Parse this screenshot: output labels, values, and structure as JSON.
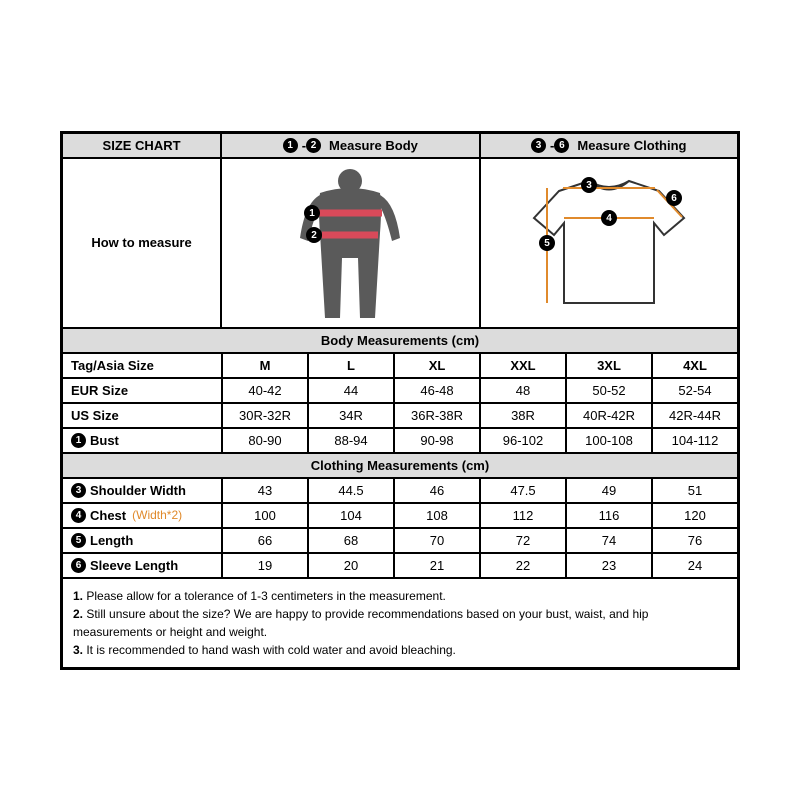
{
  "header": {
    "size_chart": "SIZE CHART",
    "measure_body_badges": [
      "1",
      "2"
    ],
    "measure_body": "Measure Body",
    "measure_clothing_badges": [
      "3",
      "6"
    ],
    "measure_clothing": "Measure Clothing",
    "how_to_measure": "How to measure"
  },
  "sections": {
    "body": "Body Measurements (cm)",
    "clothing": "Clothing Measurements  (cm)"
  },
  "sizes": [
    "M",
    "L",
    "XL",
    "XXL",
    "3XL",
    "4XL"
  ],
  "body_rows": [
    {
      "label": "Tag/Asia Size",
      "bold": true,
      "badge": null,
      "vals": [
        "M",
        "L",
        "XL",
        "XXL",
        "3XL",
        "4XL"
      ]
    },
    {
      "label": "EUR Size",
      "bold": true,
      "badge": null,
      "vals": [
        "40-42",
        "44",
        "46-48",
        "48",
        "50-52",
        "52-54"
      ]
    },
    {
      "label": "US Size",
      "bold": true,
      "badge": null,
      "vals": [
        "30R-32R",
        "34R",
        "36R-38R",
        "38R",
        "40R-42R",
        "42R-44R"
      ]
    },
    {
      "label": "Bust",
      "bold": true,
      "badge": "1",
      "vals": [
        "80-90",
        "88-94",
        "90-98",
        "96-102",
        "100-108",
        "104-112"
      ]
    }
  ],
  "clothing_rows": [
    {
      "label": "Shoulder Width",
      "bold": true,
      "badge": "3",
      "note": null,
      "vals": [
        "43",
        "44.5",
        "46",
        "47.5",
        "49",
        "51"
      ]
    },
    {
      "label": "Chest",
      "bold": true,
      "badge": "4",
      "note": "(Width*2)",
      "vals": [
        "100",
        "104",
        "108",
        "112",
        "116",
        "120"
      ]
    },
    {
      "label": "Length",
      "bold": true,
      "badge": "5",
      "note": null,
      "vals": [
        "66",
        "68",
        "70",
        "72",
        "74",
        "76"
      ]
    },
    {
      "label": "Sleeve Length",
      "bold": true,
      "badge": "6",
      "note": null,
      "vals": [
        "19",
        "20",
        "21",
        "22",
        "23",
        "24"
      ]
    }
  ],
  "notes": [
    {
      "n": "1.",
      "t": "Please allow for a tolerance of 1-3 centimeters in the measurement."
    },
    {
      "n": "2.",
      "t": "Still unsure about the size? We are happy to provide recommendations based on your bust, waist, and hip measurements or height and weight."
    },
    {
      "n": "3.",
      "t": "It is recommended to hand wash with cold water and avoid bleaching."
    }
  ],
  "colors": {
    "header_bg": "#dcdcdc",
    "body_silhouette": "#5a5a5a",
    "measure_line": "#e08a2c",
    "measure_band": "#d94a5a",
    "shirt_fill": "#ffffff",
    "shirt_stroke": "#333333",
    "badge_bg": "#000000",
    "badge_fg": "#ffffff"
  }
}
